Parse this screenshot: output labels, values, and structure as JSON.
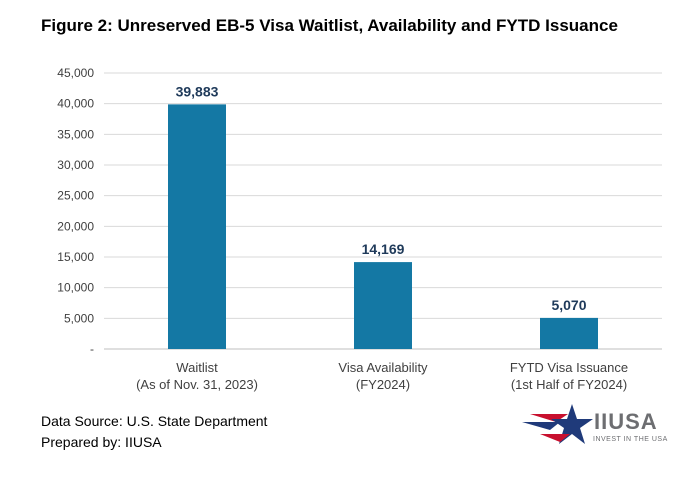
{
  "title": "Figure 2: Unreserved EB-5 Visa Waitlist, Availability and FYTD Issuance",
  "footer": {
    "source": "Data Source: U.S. State Department",
    "prepared": "Prepared by: IIUSA"
  },
  "logo": {
    "text": "IIUSA",
    "tagline": "INVEST IN THE USA",
    "colors": {
      "red": "#c8102e",
      "blue": "#1f3a7a",
      "gray": "#6d6e71"
    }
  },
  "chart_data": {
    "type": "bar",
    "categories": [
      [
        "Waitlist",
        "(As of Nov. 31, 2023)"
      ],
      [
        "Visa Availability",
        "(FY2024)"
      ],
      [
        "FYTD Visa Issuance",
        "(1st Half of FY2024)"
      ]
    ],
    "values": [
      39883,
      14169,
      5070
    ],
    "data_labels": [
      "39,883",
      "14,169",
      "5,070"
    ],
    "ylim": [
      0,
      45000
    ],
    "yticks": [
      0,
      5000,
      10000,
      15000,
      20000,
      25000,
      30000,
      35000,
      40000,
      45000
    ],
    "ytick_labels": [
      "-",
      "5,000",
      "10,000",
      "15,000",
      "20,000",
      "25,000",
      "30,000",
      "35,000",
      "40,000",
      "45,000"
    ],
    "grid": true,
    "bar_color": "#1478a4",
    "xlabel": "",
    "ylabel": ""
  }
}
